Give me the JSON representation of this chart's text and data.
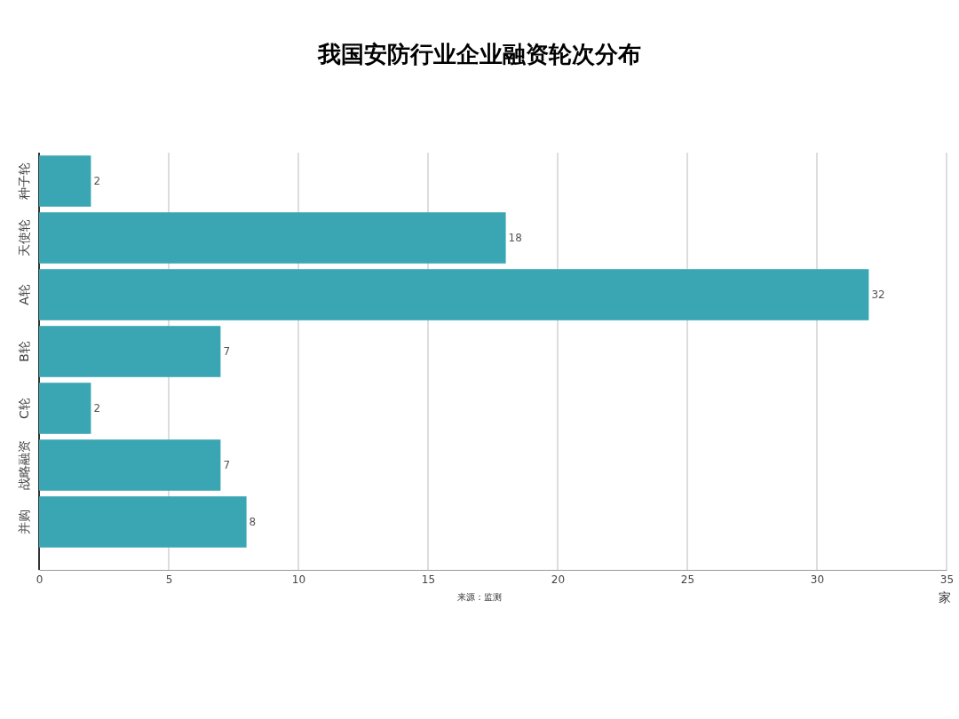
{
  "chart_data": {
    "type": "bar",
    "orientation": "horizontal",
    "title": "我国安防行业企业融资轮次分布",
    "categories": [
      "种子轮",
      "天使轮",
      "A轮",
      "B轮",
      "C轮",
      "战略融资",
      "并购"
    ],
    "values": [
      2,
      18,
      32,
      7,
      2,
      7,
      8
    ],
    "color": "#3ba6b3",
    "xlim": [
      0,
      35
    ],
    "xticks": [
      0,
      5,
      10,
      15,
      20,
      25,
      30,
      35
    ],
    "grid": "x",
    "data_labels": true,
    "xlabel": "家",
    "annotations": [
      "来源：监测"
    ]
  }
}
